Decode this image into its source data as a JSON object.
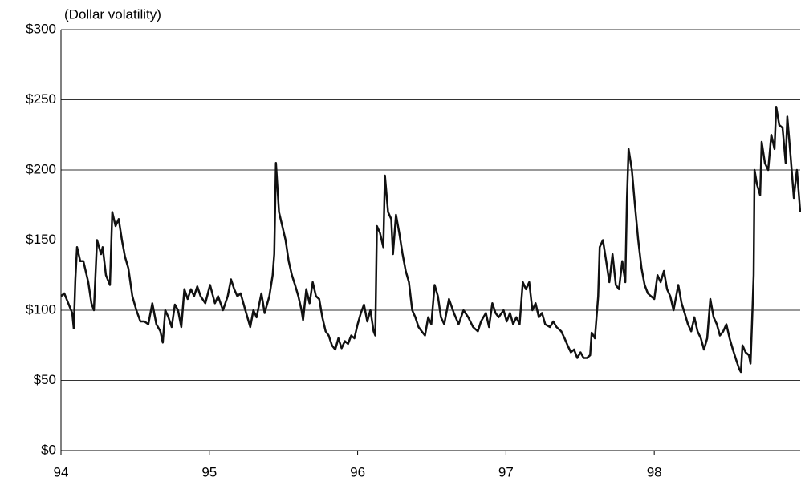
{
  "chart_data": {
    "type": "line",
    "title": "(Dollar volatility)",
    "x": [
      94.0,
      94.022,
      94.049,
      94.076,
      94.086,
      94.097,
      94.108,
      94.13,
      94.151,
      94.184,
      94.205,
      94.222,
      94.243,
      94.27,
      94.281,
      94.303,
      94.33,
      94.346,
      94.368,
      94.389,
      94.411,
      94.432,
      94.454,
      94.481,
      94.508,
      94.535,
      94.562,
      94.589,
      94.616,
      94.643,
      94.67,
      94.686,
      94.703,
      94.724,
      94.746,
      94.768,
      94.789,
      94.811,
      94.832,
      94.854,
      94.876,
      94.897,
      94.919,
      94.941,
      94.973,
      95.005,
      95.038,
      95.059,
      95.092,
      95.124,
      95.146,
      95.168,
      95.189,
      95.211,
      95.243,
      95.276,
      95.297,
      95.319,
      95.351,
      95.373,
      95.405,
      95.427,
      95.438,
      95.449,
      95.47,
      95.492,
      95.514,
      95.535,
      95.557,
      95.578,
      95.6,
      95.622,
      95.632,
      95.654,
      95.676,
      95.697,
      95.719,
      95.741,
      95.762,
      95.784,
      95.805,
      95.827,
      95.849,
      95.87,
      95.892,
      95.914,
      95.935,
      95.957,
      95.978,
      96.0,
      96.022,
      96.043,
      96.065,
      96.086,
      96.108,
      96.119,
      96.13,
      96.151,
      96.173,
      96.184,
      96.205,
      96.227,
      96.238,
      96.259,
      96.281,
      96.303,
      96.324,
      96.346,
      96.368,
      96.389,
      96.411,
      96.432,
      96.454,
      96.476,
      96.497,
      96.519,
      96.541,
      96.562,
      96.584,
      96.616,
      96.649,
      96.681,
      96.714,
      96.746,
      96.778,
      96.811,
      96.832,
      96.865,
      96.886,
      96.908,
      96.93,
      96.951,
      96.984,
      97.005,
      97.027,
      97.049,
      97.07,
      97.092,
      97.114,
      97.135,
      97.157,
      97.178,
      97.2,
      97.222,
      97.243,
      97.265,
      97.297,
      97.319,
      97.341,
      97.373,
      97.395,
      97.416,
      97.438,
      97.459,
      97.481,
      97.503,
      97.524,
      97.546,
      97.568,
      97.578,
      97.6,
      97.622,
      97.632,
      97.654,
      97.676,
      97.697,
      97.719,
      97.741,
      97.762,
      97.784,
      97.805,
      97.816,
      97.827,
      97.849,
      97.87,
      97.892,
      97.914,
      97.935,
      97.957,
      97.978,
      98.0,
      98.022,
      98.043,
      98.065,
      98.086,
      98.108,
      98.13,
      98.162,
      98.184,
      98.205,
      98.227,
      98.249,
      98.27,
      98.292,
      98.314,
      98.335,
      98.357,
      98.378,
      98.4,
      98.422,
      98.443,
      98.465,
      98.486,
      98.508,
      98.53,
      98.551,
      98.573,
      98.584,
      98.595,
      98.616,
      98.638,
      98.649,
      98.659,
      98.67,
      98.676,
      98.692,
      98.714,
      98.724,
      98.746,
      98.768,
      98.789,
      98.811,
      98.822,
      98.843,
      98.865,
      98.886,
      98.897,
      98.919,
      98.941,
      98.951,
      98.962,
      98.973,
      98.984
    ],
    "series": [
      {
        "color": "#111111",
        "values": [
          110,
          112,
          105,
          98,
          87,
          122,
          145,
          135,
          135,
          120,
          105,
          100,
          150,
          140,
          145,
          125,
          118,
          170,
          160,
          165,
          150,
          138,
          130,
          110,
          100,
          92,
          92,
          90,
          105,
          90,
          85,
          77,
          100,
          95,
          88,
          104,
          100,
          88,
          115,
          108,
          115,
          110,
          117,
          110,
          105,
          118,
          105,
          110,
          100,
          110,
          122,
          115,
          110,
          112,
          100,
          88,
          100,
          95,
          112,
          98,
          110,
          125,
          140,
          205,
          170,
          160,
          150,
          135,
          125,
          118,
          110,
          100,
          93,
          115,
          105,
          120,
          110,
          108,
          95,
          85,
          82,
          75,
          72,
          80,
          73,
          78,
          76,
          82,
          80,
          90,
          98,
          104,
          92,
          100,
          85,
          82,
          160,
          155,
          145,
          196,
          170,
          165,
          140,
          168,
          155,
          140,
          128,
          120,
          100,
          95,
          88,
          85,
          82,
          95,
          90,
          118,
          110,
          95,
          90,
          108,
          98,
          90,
          100,
          95,
          88,
          85,
          92,
          98,
          88,
          105,
          98,
          95,
          100,
          92,
          98,
          90,
          95,
          90,
          120,
          115,
          120,
          100,
          105,
          95,
          98,
          90,
          88,
          92,
          88,
          85,
          80,
          75,
          70,
          72,
          66,
          70,
          66,
          66,
          68,
          84,
          80,
          110,
          145,
          150,
          135,
          120,
          140,
          118,
          115,
          135,
          120,
          180,
          215,
          200,
          175,
          150,
          130,
          118,
          112,
          110,
          108,
          125,
          120,
          128,
          115,
          110,
          100,
          118,
          105,
          98,
          90,
          85,
          95,
          85,
          80,
          72,
          80,
          108,
          95,
          90,
          82,
          85,
          90,
          80,
          72,
          65,
          58,
          56,
          75,
          70,
          68,
          62,
          90,
          125,
          200,
          190,
          182,
          220,
          205,
          200,
          225,
          215,
          245,
          232,
          230,
          205,
          238,
          210,
          180,
          190,
          200,
          185,
          170
        ]
      }
    ],
    "xlim": [
      94,
      98.984
    ],
    "xticks": [
      94,
      95,
      96,
      97,
      98
    ],
    "ylim": [
      0,
      300
    ],
    "yticks": [
      {
        "value": 0,
        "label": "$0"
      },
      {
        "value": 50,
        "label": "$50"
      },
      {
        "value": 100,
        "label": "$100"
      },
      {
        "value": 150,
        "label": "$150"
      },
      {
        "value": 200,
        "label": "$200"
      },
      {
        "value": 250,
        "label": "$250"
      },
      {
        "value": 300,
        "label": "$300"
      }
    ],
    "grid": true
  }
}
